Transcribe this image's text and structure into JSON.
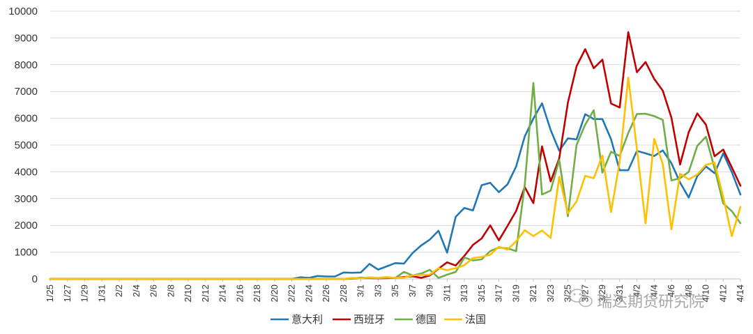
{
  "chart_data": {
    "type": "line",
    "title": "",
    "xlabel": "",
    "ylabel": "",
    "ylim": [
      0,
      10000
    ],
    "yticks": [
      0,
      1000,
      2000,
      3000,
      4000,
      5000,
      6000,
      7000,
      8000,
      9000,
      10000
    ],
    "grid": "horizontal",
    "legend_position": "bottom",
    "x_start": "1/25",
    "x": [
      "1/25",
      "1/26",
      "1/27",
      "1/28",
      "1/29",
      "1/30",
      "1/31",
      "2/1",
      "2/2",
      "2/3",
      "2/4",
      "2/5",
      "2/6",
      "2/7",
      "2/8",
      "2/9",
      "2/10",
      "2/11",
      "2/12",
      "2/13",
      "2/14",
      "2/15",
      "2/16",
      "2/17",
      "2/18",
      "2/19",
      "2/20",
      "2/21",
      "2/22",
      "2/23",
      "2/24",
      "2/25",
      "2/26",
      "2/27",
      "2/28",
      "2/29",
      "3/1",
      "3/2",
      "3/3",
      "3/4",
      "3/5",
      "3/6",
      "3/7",
      "3/8",
      "3/9",
      "3/10",
      "3/11",
      "3/12",
      "3/13",
      "3/14",
      "3/15",
      "3/16",
      "3/17",
      "3/18",
      "3/19",
      "3/20",
      "3/21",
      "3/22",
      "3/23",
      "3/24",
      "3/25",
      "3/26",
      "3/27",
      "3/28",
      "3/29",
      "3/30",
      "3/31",
      "4/1",
      "4/2",
      "4/3",
      "4/4",
      "4/5",
      "4/6",
      "4/7",
      "4/8",
      "4/9",
      "4/10",
      "4/11",
      "4/12",
      "4/13",
      "4/14"
    ],
    "x_tick_labels": [
      "1/25",
      "1/27",
      "1/29",
      "1/31",
      "2/2",
      "2/4",
      "2/6",
      "2/8",
      "2/10",
      "2/12",
      "2/14",
      "2/16",
      "2/18",
      "2/20",
      "2/22",
      "2/24",
      "2/26",
      "2/28",
      "3/1",
      "3/3",
      "3/5",
      "3/7",
      "3/9",
      "3/11",
      "3/13",
      "3/15",
      "3/17",
      "3/19",
      "3/21",
      "3/23",
      "3/25",
      "3/27",
      "3/29",
      "3/31",
      "4/2",
      "4/4",
      "4/6",
      "4/8",
      "4/10",
      "4/12",
      "4/14"
    ],
    "series": [
      {
        "name": "意大利",
        "color": "#1f77b4",
        "values": [
          0,
          0,
          0,
          0,
          0,
          0,
          0,
          0,
          0,
          0,
          0,
          0,
          0,
          0,
          0,
          0,
          0,
          0,
          0,
          0,
          0,
          0,
          0,
          0,
          0,
          0,
          0,
          0,
          0,
          60,
          40,
          110,
          90,
          90,
          240,
          230,
          240,
          560,
          350,
          470,
          590,
          570,
          970,
          1250,
          1470,
          1800,
          980,
          2320,
          2650,
          2560,
          3500,
          3590,
          3240,
          3530,
          4200,
          5320,
          5990,
          6560,
          5560,
          4790,
          5250,
          5210,
          6150,
          5970,
          5970,
          5220,
          4060,
          4060,
          4780,
          4690,
          4590,
          4800,
          4320,
          3600,
          3040,
          3840,
          4200,
          3950,
          4690,
          3990,
          3150
        ]
      },
      {
        "name": "西班牙",
        "color": "#c00000",
        "values": [
          0,
          0,
          0,
          0,
          0,
          0,
          0,
          0,
          0,
          0,
          0,
          0,
          0,
          0,
          0,
          0,
          0,
          0,
          0,
          0,
          0,
          0,
          0,
          0,
          0,
          0,
          0,
          0,
          0,
          0,
          0,
          0,
          0,
          0,
          0,
          10,
          30,
          30,
          20,
          30,
          40,
          70,
          100,
          40,
          130,
          380,
          620,
          500,
          860,
          1270,
          1510,
          2000,
          1440,
          1980,
          2540,
          3430,
          2830,
          4950,
          3640,
          4500,
          6580,
          7940,
          8580,
          7870,
          8190,
          6550,
          6400,
          9220,
          7720,
          8100,
          7470,
          7030,
          6020,
          4270,
          5480,
          6180,
          5760,
          4580,
          4830,
          4170,
          3480
        ]
      },
      {
        "name": "德国",
        "color": "#70ad47",
        "values": [
          0,
          0,
          0,
          0,
          0,
          0,
          0,
          0,
          0,
          0,
          0,
          0,
          0,
          0,
          0,
          0,
          0,
          0,
          0,
          0,
          0,
          0,
          0,
          0,
          0,
          0,
          0,
          0,
          0,
          0,
          0,
          0,
          0,
          0,
          0,
          10,
          50,
          30,
          30,
          40,
          40,
          260,
          130,
          200,
          340,
          40,
          160,
          260,
          800,
          690,
          730,
          1040,
          1170,
          1140,
          1040,
          3510,
          7320,
          3150,
          3300,
          4440,
          2340,
          5000,
          5760,
          6300,
          3970,
          4750,
          4590,
          5450,
          6160,
          6170,
          6080,
          5940,
          3680,
          3760,
          4000,
          4970,
          5310,
          4130,
          2820,
          2530,
          2080
        ]
      },
      {
        "name": "法国",
        "color": "#ffc000",
        "values": [
          0,
          0,
          0,
          0,
          0,
          0,
          0,
          0,
          0,
          0,
          0,
          0,
          0,
          0,
          0,
          0,
          0,
          0,
          0,
          0,
          0,
          0,
          0,
          0,
          0,
          0,
          0,
          0,
          0,
          0,
          0,
          0,
          0,
          0,
          0,
          40,
          20,
          60,
          40,
          70,
          40,
          50,
          130,
          150,
          160,
          400,
          330,
          400,
          510,
          780,
          820,
          900,
          1200,
          1100,
          1400,
          1820,
          1600,
          1810,
          1530,
          3810,
          2450,
          2890,
          3850,
          3760,
          4610,
          2500,
          4380,
          7520,
          4860,
          2070,
          5230,
          4290,
          1850,
          3930,
          3720,
          3900,
          4260,
          4340,
          3060,
          1600,
          2690
        ]
      }
    ]
  },
  "watermark": {
    "text": "瑞达期货研究院",
    "icon": "wechat-icon"
  }
}
